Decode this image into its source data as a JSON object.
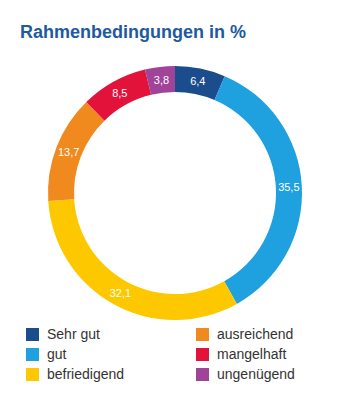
{
  "chart_data": {
    "type": "donut",
    "title": "Rahmenbedingungen in %",
    "categories": [
      "Sehr gut",
      "gut",
      "befriedigend",
      "ausreichend",
      "mangelhaft",
      "ungenügend"
    ],
    "values": [
      6.4,
      35.5,
      32.1,
      13.7,
      8.5,
      3.8
    ],
    "value_labels": [
      "6,4",
      "35,5",
      "32,1",
      "13,7",
      "8,5",
      "3,8"
    ],
    "colors": [
      "#1b4c8c",
      "#1fa0df",
      "#fdc800",
      "#f08a1e",
      "#e3123a",
      "#a0449a"
    ],
    "data_labels": true,
    "legend": "bottom"
  }
}
